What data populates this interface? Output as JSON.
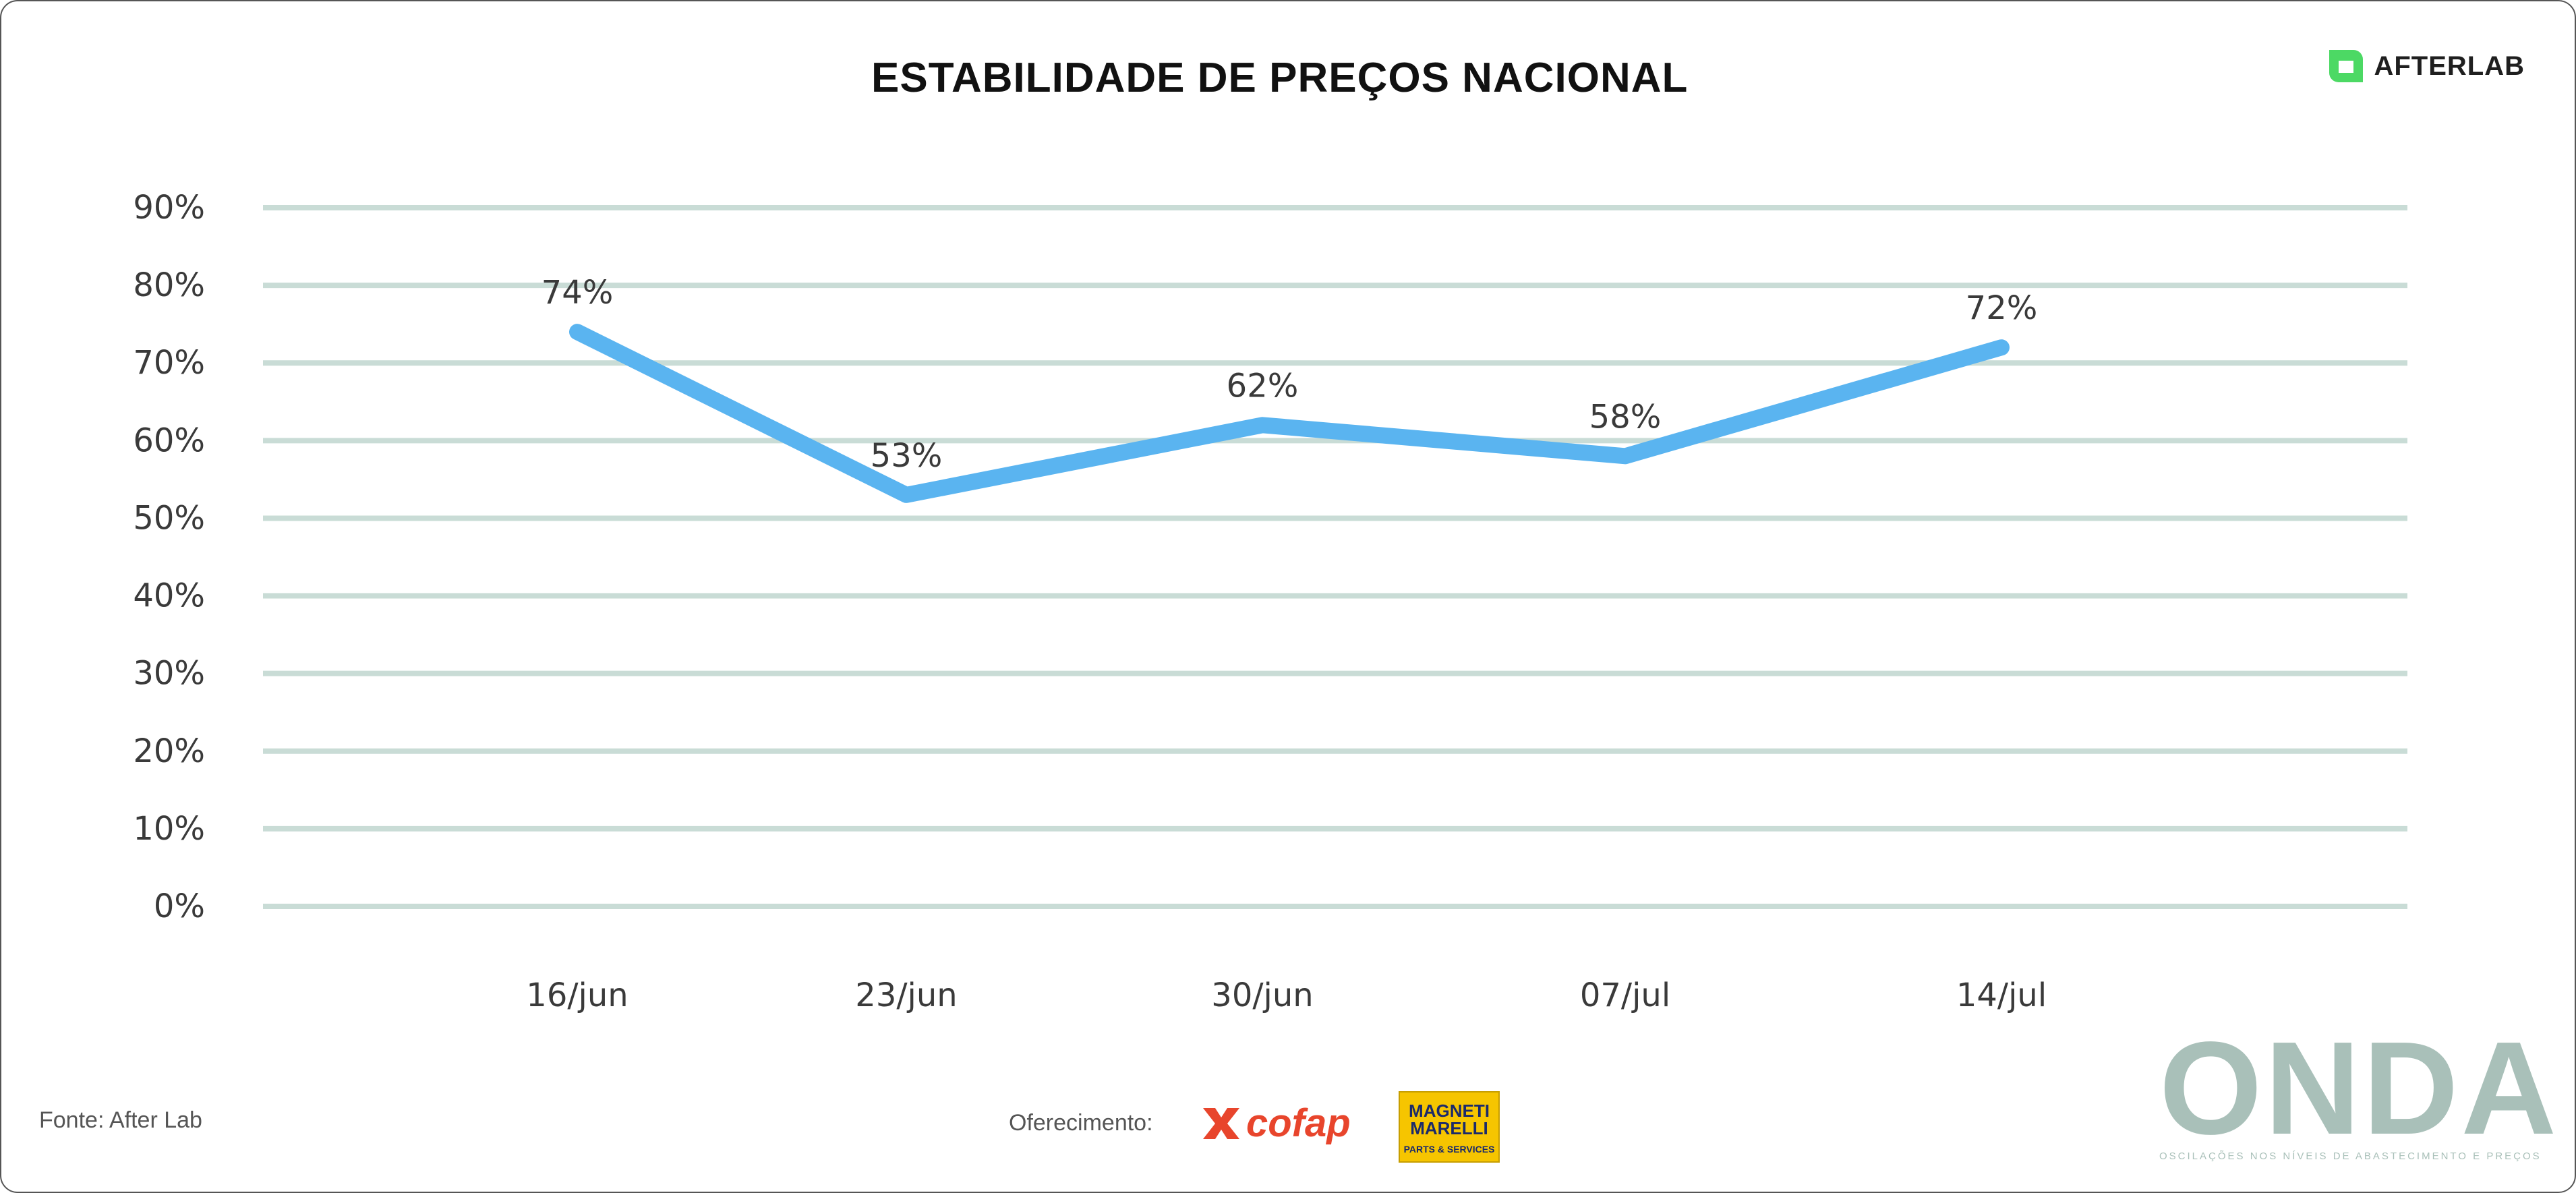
{
  "header": {
    "title": "ESTABILIDADE DE PREÇOS NACIONAL",
    "brand": "AFTERLAB"
  },
  "footer": {
    "source": "Fonte: After Lab",
    "sponsor_label": "Oferecimento:",
    "sponsors": [
      {
        "name": "cofap",
        "color": "#e8452c"
      },
      {
        "name": "MAGNETI MARELLI",
        "subtitle": "PARTS & SERVICES",
        "color": "#f6c500"
      }
    ],
    "logo": "ONDA",
    "logo_tagline": "OSCILAÇÕES NOS NÍVEIS DE ABASTECIMENTO E PREÇOS"
  },
  "colors": {
    "line": "#5ab4f0",
    "grid": "#c9dcd6",
    "brand_accent": "#4cd964",
    "onda": "#a9c0b9"
  },
  "icons": {
    "brand": "afterlab-logo-icon",
    "cofap": "cofap-logo-icon"
  },
  "chart_data": {
    "type": "line",
    "categories": [
      "16/jun",
      "23/jun",
      "30/jun",
      "07/jul",
      "14/jul"
    ],
    "series": [
      {
        "values": [
          74,
          53,
          62,
          58,
          72
        ]
      }
    ],
    "data_labels": [
      "74%",
      "53%",
      "62%",
      "58%",
      "72%"
    ],
    "yticks": [
      "0%",
      "10%",
      "20%",
      "30%",
      "40%",
      "50%",
      "60%",
      "70%",
      "80%",
      "90%"
    ],
    "ylim": [
      0,
      90
    ],
    "title": "ESTABILIDADE DE PREÇOS NACIONAL",
    "xlabel": "",
    "ylabel": "",
    "grid": true,
    "legend": "none"
  }
}
